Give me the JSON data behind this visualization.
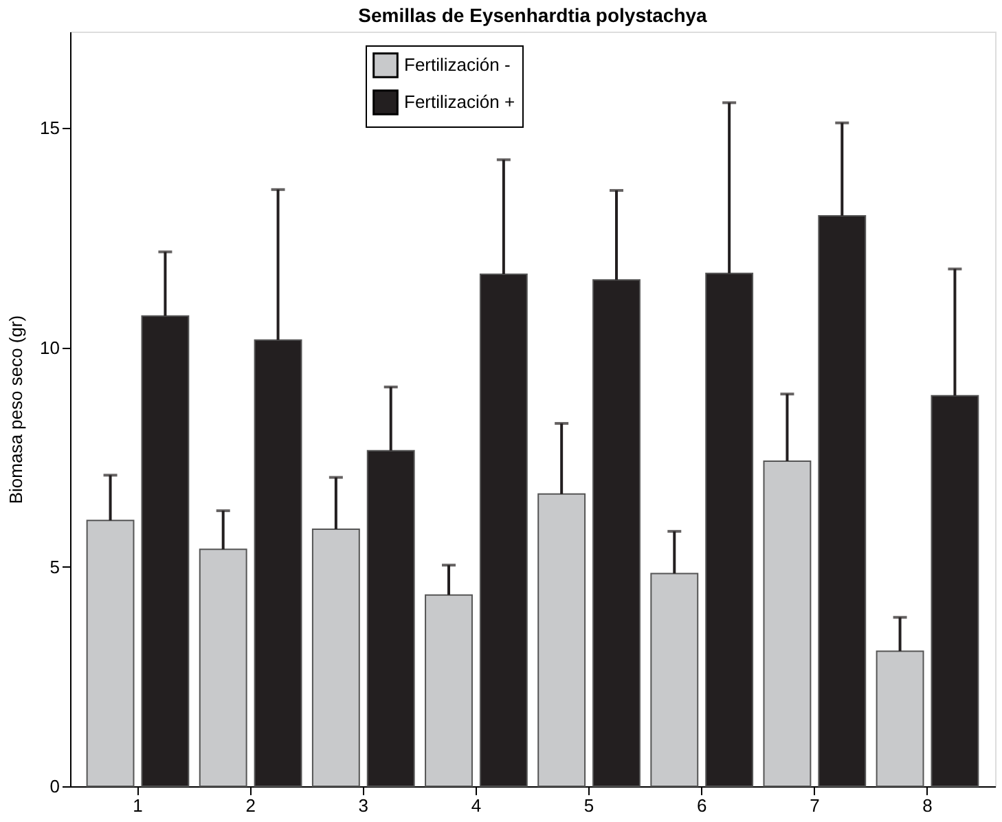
{
  "chart_data": {
    "type": "bar",
    "title": "Semillas de Eysenhardtia polystachya",
    "ylabel": "Biomasa peso seco (gr)",
    "categories": [
      "1",
      "2",
      "3",
      "4",
      "5",
      "6",
      "7",
      "8"
    ],
    "series": [
      {
        "name": "Fertilización -",
        "color": "#c8c9cb",
        "values": [
          6.06,
          5.4,
          5.86,
          4.36,
          6.66,
          4.85,
          7.41,
          3.08
        ],
        "errors": [
          [
            6.06,
            7.09
          ],
          [
            5.4,
            6.28
          ],
          [
            5.86,
            7.04
          ],
          [
            4.36,
            5.04
          ],
          [
            6.66,
            8.27
          ],
          [
            4.85,
            5.81
          ],
          [
            7.41,
            8.94
          ],
          [
            3.08,
            3.85
          ]
        ]
      },
      {
        "name": "Fertilización +",
        "color": "#231f20",
        "values": [
          10.72,
          10.17,
          7.65,
          11.67,
          11.54,
          11.69,
          13.0,
          8.9
        ],
        "errors": [
          [
            10.72,
            12.18
          ],
          [
            10.17,
            13.6
          ],
          [
            7.65,
            9.1
          ],
          [
            11.67,
            14.28
          ],
          [
            11.54,
            13.58
          ],
          [
            11.69,
            15.58
          ],
          [
            13.0,
            15.12
          ],
          [
            8.9,
            11.79
          ]
        ]
      }
    ],
    "ylim": [
      0,
      17.2
    ],
    "yticks": [
      0,
      5,
      10,
      15
    ],
    "grid": false,
    "legend": "top"
  }
}
